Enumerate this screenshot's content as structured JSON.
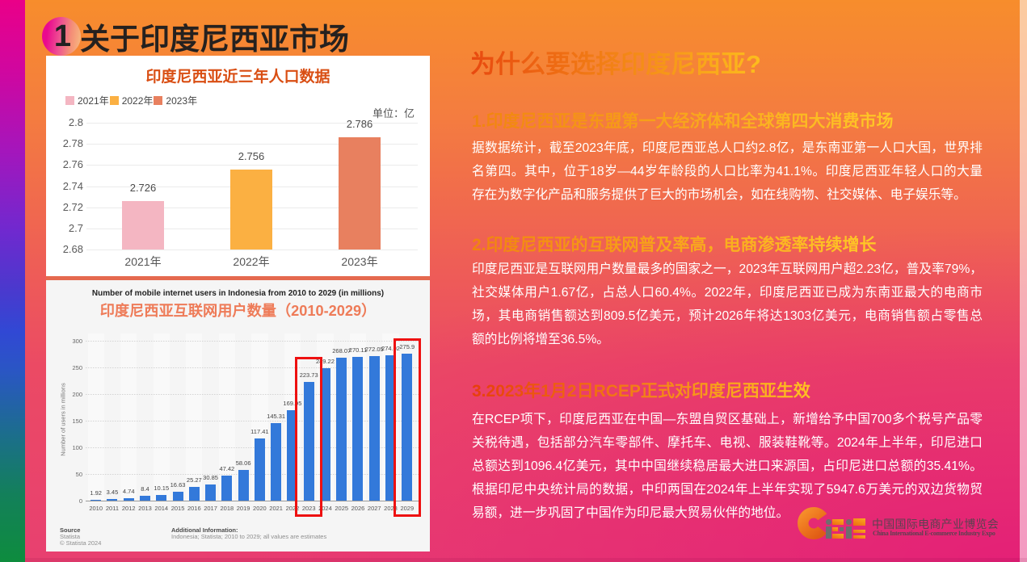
{
  "slide": {
    "badge_number": "1",
    "title": "关于印度尼西亚市场"
  },
  "right": {
    "title": "为什么要选择印度尼西亚?",
    "title_gradient": [
      "#e8490f",
      "#fdbd1d"
    ],
    "heading_gradient": [
      "#f1830f",
      "#ffc827"
    ],
    "heading3_gradient": [
      "#e73d0c",
      "#ffc321"
    ],
    "sections": [
      {
        "heading": "1.印度尼西亚是东盟第一大经济体和全球第四大消费市场",
        "lines": [
          "据数据统计，截至2023年底，印度尼西亚总人口约2.8亿，是东南亚第一人口大国，世界排",
          "名第四。其中，位于18岁—44岁年龄段的人口比率为41.1%。印度尼西亚年轻人口的大量",
          "存在为数字化产品和服务提供了巨大的市场机会，如在线购物、社交媒体、电子娱乐等。"
        ]
      },
      {
        "heading": "2.印度尼西亚的互联网普及率高，电商渗透率持续增长",
        "lines": [
          "印度尼西亚是互联网用户数量最多的国家之一，2023年互联网用户超2.23亿，普及率79%，",
          "社交媒体用户1.67亿，占总人口60.4%。2022年，印度尼西亚已成为东南亚最大的电商市",
          "场，其电商销售额达到809.5亿美元，预计2026年将达1303亿美元，电商销售额占零售总",
          "额的比例将增至36.5%。"
        ]
      },
      {
        "heading": "3.2023年1月2日RCEP正式对印度尼西亚生效",
        "lines": [
          "在RCEP项下，印度尼西亚在中国—东盟自贸区基础上，新增给予中国700多个税号产品零",
          "关税待遇，包括部分汽车零部件、摩托车、电视、服装鞋靴等。2024年上半年，印尼进口",
          "总额达到1096.4亿美元，其中中国继续稳居最大进口来源国，占印尼进口总额的35.41%。",
          "根据印尼中央统计局的数据，中印两国在2024年上半年实现了5947.6万美元的双边货物贸",
          "易额，进一步巩固了中国作为印尼最大贸易伙伴的地位。"
        ]
      }
    ]
  },
  "chart_data": [
    {
      "type": "bar",
      "title": "印度尼西亚近三年人口数据",
      "title_color": "#d94e13",
      "unit_label": "单位：亿",
      "categories": [
        "2021年",
        "2022年",
        "2023年"
      ],
      "values": [
        2.726,
        2.756,
        2.786
      ],
      "value_labels": [
        "2.726",
        "2.756",
        "2.786"
      ],
      "bar_colors": [
        "#f4b6c2",
        "#fbb042",
        "#e8805f"
      ],
      "ylim": [
        2.68,
        2.8
      ],
      "yticks": [
        "2.8",
        "2.78",
        "2.76",
        "2.74",
        "2.72",
        "2.7",
        "2.68"
      ],
      "legend": [
        "2021年",
        "2022年",
        "2023年"
      ],
      "legend_position": "top-left",
      "grid": "horizontal"
    },
    {
      "type": "bar",
      "title": "Number of mobile internet users in Indonesia from 2010 to 2029 (in millions)",
      "subtitle": "印度尼西亚互联网用户数量（2010-2029）",
      "subtitle_color": "#ee7b58",
      "ylabel": "Number of users in millions",
      "categories": [
        "2010",
        "2011",
        "2012",
        "2013",
        "2014",
        "2015",
        "2016",
        "2017",
        "2018",
        "2019",
        "2020",
        "2021",
        "2022",
        "2023",
        "2024",
        "2025",
        "2026",
        "2027",
        "2028",
        "2029"
      ],
      "values": [
        1.92,
        3.45,
        4.74,
        8.4,
        10.15,
        16.63,
        25.27,
        30.85,
        47.42,
        58.06,
        117.41,
        145.31,
        169.95,
        223.73,
        249.22,
        268.07,
        270.11,
        272.05,
        274.02,
        275.9
      ],
      "value_labels": [
        "1.92",
        "3.45",
        "4.74",
        "8.4",
        "10.15",
        "16.63",
        "25.27",
        "30.85",
        "47.42",
        "58.06",
        "117.41",
        "145.31",
        "169.95",
        "223.73",
        "249.22",
        "268.07",
        "270.11",
        "272.05",
        "274.02",
        "275.9"
      ],
      "bar_color": "#3379da",
      "ylim": [
        0,
        300
      ],
      "yticks": [
        "300",
        "250",
        "200",
        "150",
        "100",
        "50",
        "0"
      ],
      "highlighted_categories": [
        "2023",
        "2029"
      ],
      "highlight_color": "#ee1111",
      "grid": "horizontal-dashed",
      "source_label": "Source",
      "source_name": "Statista",
      "source_copyright": "© Statista 2024",
      "additional_label": "Additional Information:",
      "additional_text": "Indonesia; Statista; 2010 to 2029; all values are estimates"
    }
  ],
  "logo": {
    "wordmark": "CIEIE",
    "name_cn": "中国国际电商产业博览会",
    "name_en": "China International E-commerce Industry Expo",
    "orange": "#f0831c",
    "gray": "#6e6e6e"
  }
}
